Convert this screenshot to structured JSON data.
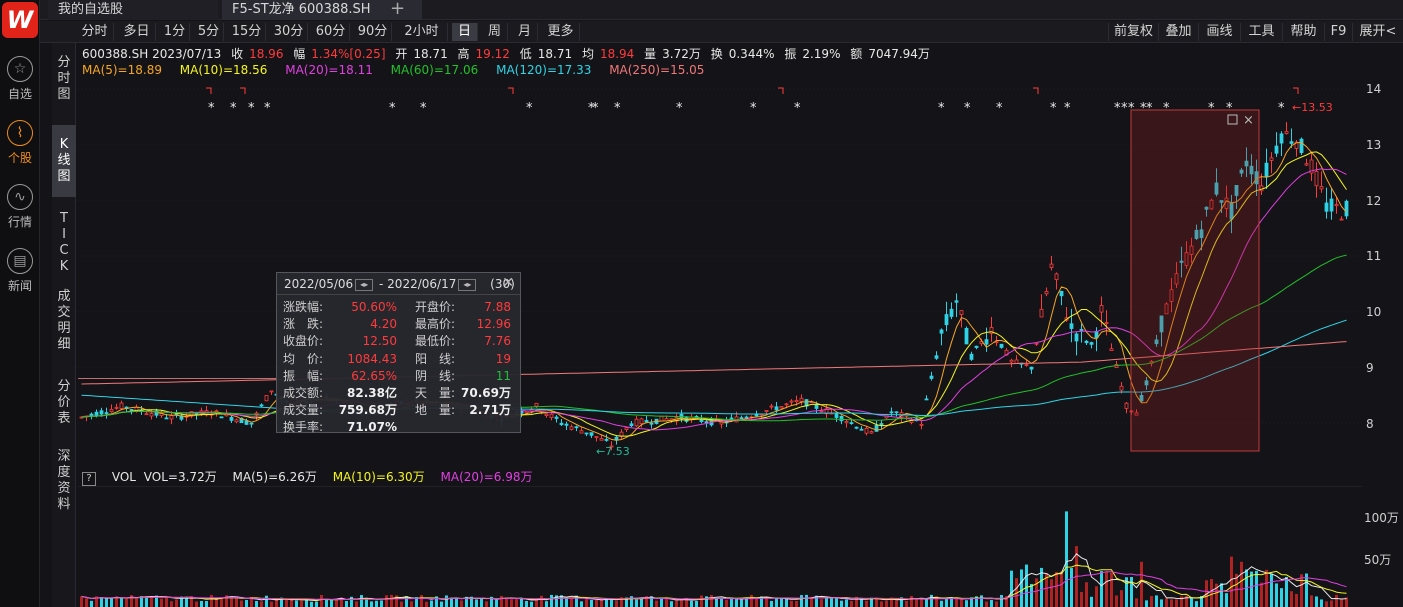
{
  "app": {
    "logo": "W",
    "nav": [
      {
        "label": "自选",
        "icon": "star-icon",
        "glyph": "☆"
      },
      {
        "label": "个股",
        "icon": "stock-chart-icon",
        "glyph": "📈"
      },
      {
        "label": "行情",
        "icon": "market-trend-icon",
        "glyph": "∿"
      },
      {
        "label": "新闻",
        "icon": "news-icon",
        "glyph": "▤"
      }
    ]
  },
  "tabs": {
    "t1": "我的自选股",
    "t2": "F5-ST龙净 600388.SH",
    "add": "+"
  },
  "periods": [
    "分时",
    "多日",
    "1分",
    "5分",
    "15分",
    "30分",
    "60分",
    "90分",
    "2小时",
    "日",
    "周",
    "月",
    "更多"
  ],
  "active_period": "日",
  "right_tools": [
    "前复权",
    "叠加",
    "画线",
    "工具",
    "帮助",
    "F9",
    "展开<"
  ],
  "vtabs": [
    "分\n时\n图",
    "K\n线\n图",
    "T\nI\nC\nK",
    "成\n交\n明\n细",
    "分\n价\n表",
    "深\n度\n资\n料"
  ],
  "quote": {
    "code_date": "600388.SH 2023/07/13",
    "close_label": "收",
    "close": "18.96",
    "chg_label": "幅",
    "chg": "1.34%[0.25]",
    "open_label": "开",
    "open": "18.71",
    "high_label": "高",
    "high": "19.12",
    "low_label": "低",
    "low": "18.71",
    "avg_label": "均",
    "avg": "18.94",
    "vol_label": "量",
    "vol": "3.72万",
    "turn_label": "换",
    "turn": "0.344%",
    "amp_label": "振",
    "amp": "2.19%",
    "amt_label": "额",
    "amt": "7047.94万"
  },
  "ma": [
    {
      "label": "MA(5)=18.89",
      "color": "#f5a623"
    },
    {
      "label": "MA(10)=18.56",
      "color": "#f5f51e"
    },
    {
      "label": "MA(20)=18.11",
      "color": "#e040e0"
    },
    {
      "label": "MA(60)=17.06",
      "color": "#22c02a"
    },
    {
      "label": "MA(120)=17.33",
      "color": "#2fd3e6"
    },
    {
      "label": "MA(250)=15.05",
      "color": "#f07878"
    }
  ],
  "vol_info": {
    "q": "?",
    "label": "VOL",
    "vol": "VOL=3.72万",
    "ma5": "MA(5)=6.26万",
    "ma10": "MA(10)=6.30万",
    "ma20": "MA(20)=6.98万"
  },
  "popup": {
    "start": "2022/05/06",
    "end": "2022/06/17",
    "sep": "-",
    "count": "(30)",
    "rows": [
      {
        "k1": "涨跌幅:",
        "v1": "50.60%",
        "c1": "red",
        "k2": "开盘价:",
        "v2": "7.88",
        "c2": "red"
      },
      {
        "k1": "涨　跌:",
        "v1": "4.20",
        "c1": "red",
        "k2": "最高价:",
        "v2": "12.96",
        "c2": "red"
      },
      {
        "k1": "收盘价:",
        "v1": "12.50",
        "c1": "red",
        "k2": "最低价:",
        "v2": "7.76",
        "c2": "red"
      },
      {
        "k1": "均　价:",
        "v1": "1084.43",
        "c1": "red",
        "k2": "阳　线:",
        "v2": "19",
        "c2": "red"
      },
      {
        "k1": "振　幅:",
        "v1": "62.65%",
        "c1": "red",
        "k2": "阴　线:",
        "v2": "11",
        "c2": "green"
      },
      {
        "k1": "成交额:",
        "v1": "82.38亿",
        "c1": "white",
        "k2": "天　量:",
        "v2": "70.69万",
        "c2": "white"
      },
      {
        "k1": "成交量:",
        "v1": "759.68万",
        "c1": "white",
        "k2": "地　量:",
        "v2": "2.71万",
        "c2": "white"
      },
      {
        "k1": "换手率:",
        "v1": "71.07%",
        "c1": "white",
        "k2": "",
        "v2": "",
        "c2": "white"
      }
    ]
  },
  "chart_data": {
    "type": "candlestick",
    "price_ticks": [
      14,
      13,
      12,
      11,
      10,
      9,
      8
    ],
    "ylim": [
      7.3,
      14.2
    ],
    "annotations": {
      "low_label": "←7.53",
      "high_label": "←13.53"
    },
    "volume_ticks": [
      "100万",
      "50万"
    ],
    "volume_max": 130
  }
}
